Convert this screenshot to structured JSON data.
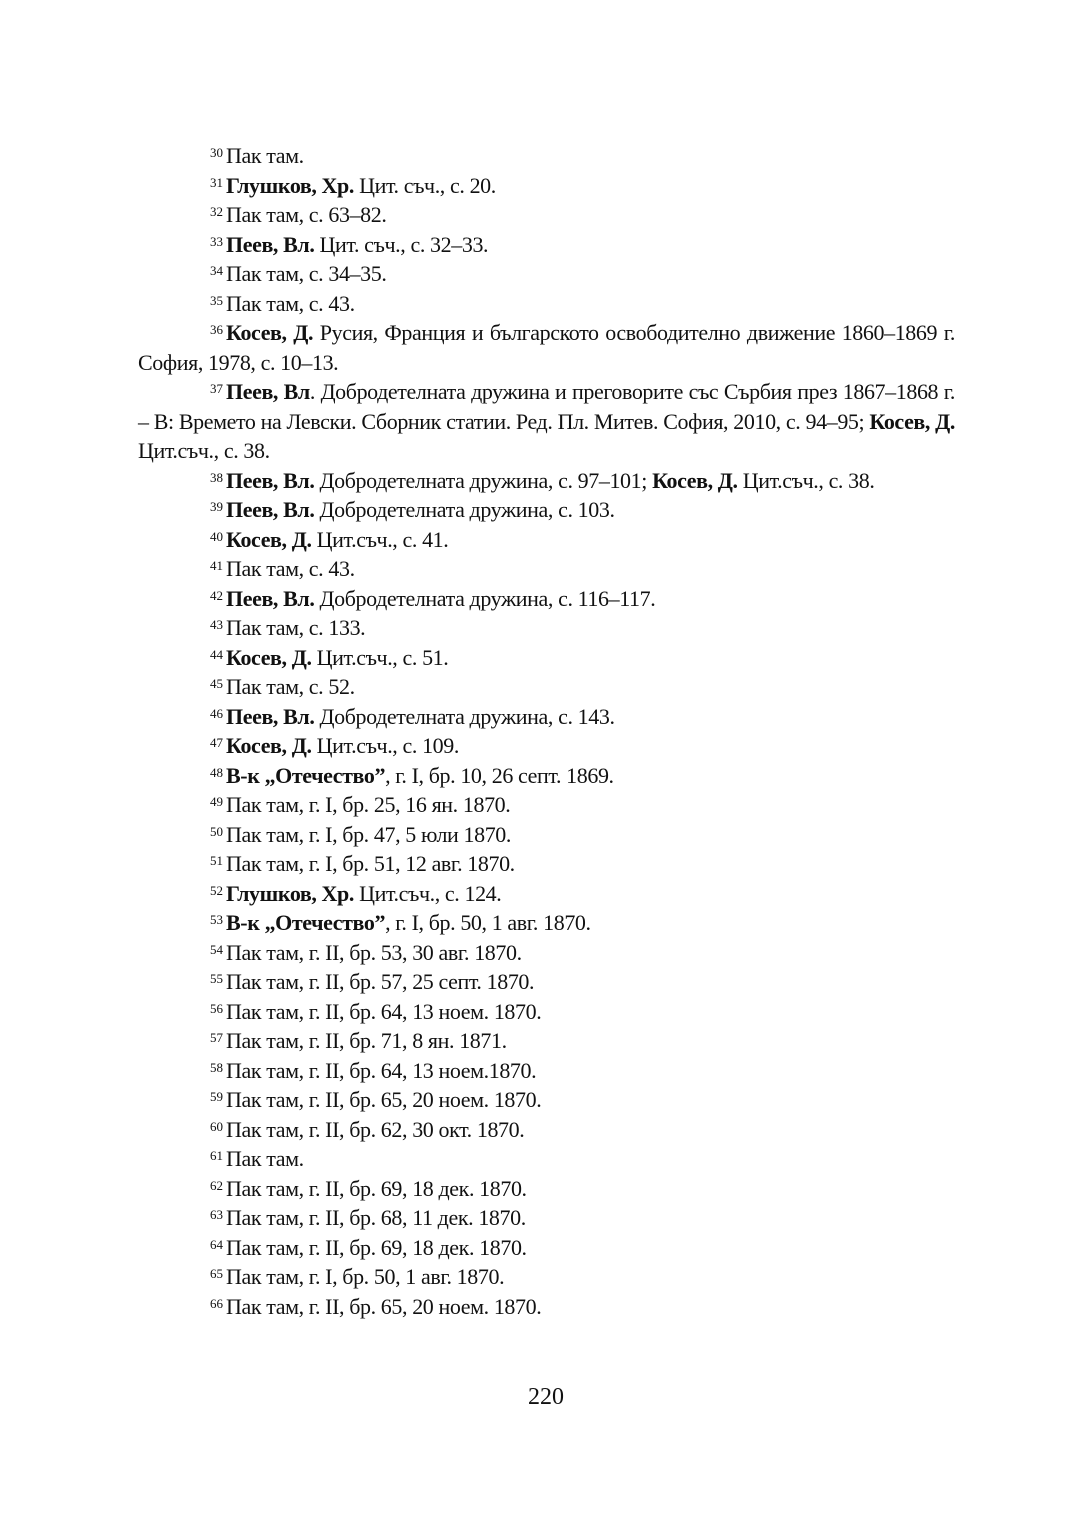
{
  "notes": [
    {
      "num": "30",
      "segments": [
        {
          "t": "Пак там."
        }
      ]
    },
    {
      "num": "31",
      "segments": [
        {
          "b": "Глушков, Хр."
        },
        {
          "t": " Цит. съч., с. 20."
        }
      ]
    },
    {
      "num": "32",
      "segments": [
        {
          "t": "Пак там, с. 63–82."
        }
      ]
    },
    {
      "num": "33",
      "segments": [
        {
          "b": "Пеев, Вл."
        },
        {
          "t": " Цит. съч., с. 32–33."
        }
      ]
    },
    {
      "num": "34",
      "segments": [
        {
          "t": "Пак там, с. 34–35."
        }
      ]
    },
    {
      "num": "35",
      "segments": [
        {
          "t": "Пак там, с. 43."
        }
      ]
    },
    {
      "num": "36",
      "segments": [
        {
          "b": "Косев, Д."
        },
        {
          "t": " Русия, Франция и българското освободително движение 1860–1869 г. София, 1978, с. 10–13."
        }
      ]
    },
    {
      "num": "37",
      "segments": [
        {
          "b": "Пеев, Вл"
        },
        {
          "t": ". Добродетелната дружина и преговорите със Сърбия през 1867–1868 г. – В: Времето на Левски. Сборник статии. Ред. Пл. Митев. София, 2010, с. 94–95; "
        },
        {
          "b": "Косев, Д."
        },
        {
          "t": " Цит.съч., с. 38."
        }
      ]
    },
    {
      "num": "38",
      "segments": [
        {
          "b": "Пеев, Вл."
        },
        {
          "t": " Добродетелната дружина, с. 97–101; "
        },
        {
          "b": "Косев, Д."
        },
        {
          "t": " Цит.съч., с. 38."
        }
      ]
    },
    {
      "num": "39",
      "segments": [
        {
          "b": "Пеев, Вл."
        },
        {
          "t": " Добродетелната дружина, с. 103."
        }
      ]
    },
    {
      "num": "40",
      "segments": [
        {
          "b": "Косев, Д."
        },
        {
          "t": " Цит.съч., с. 41."
        }
      ]
    },
    {
      "num": "41",
      "segments": [
        {
          "t": "Пак там, с. 43."
        }
      ]
    },
    {
      "num": "42",
      "segments": [
        {
          "b": "Пеев, Вл."
        },
        {
          "t": " Добродетелната дружина, с. 116–117."
        }
      ]
    },
    {
      "num": "43",
      "segments": [
        {
          "t": "Пак там, с. 133."
        }
      ]
    },
    {
      "num": "44",
      "segments": [
        {
          "b": "Косев, Д."
        },
        {
          "t": " Цит.съч., с. 51."
        }
      ]
    },
    {
      "num": "45",
      "segments": [
        {
          "t": "Пак там, с. 52."
        }
      ]
    },
    {
      "num": "46",
      "segments": [
        {
          "b": "Пеев, Вл."
        },
        {
          "t": " Добродетелната дружина, с. 143."
        }
      ]
    },
    {
      "num": "47",
      "segments": [
        {
          "b": "Косев, Д."
        },
        {
          "t": " Цит.съч., с. 109."
        }
      ]
    },
    {
      "num": "48",
      "segments": [
        {
          "b": "В-к „Отечество”"
        },
        {
          "t": ", г. I, бр. 10, 26 септ. 1869."
        }
      ]
    },
    {
      "num": "49",
      "segments": [
        {
          "t": "Пак там, г. I, бр. 25, 16 ян. 1870."
        }
      ]
    },
    {
      "num": "50",
      "segments": [
        {
          "t": "Пак там, г. I, бр. 47, 5 юли 1870."
        }
      ]
    },
    {
      "num": "51",
      "segments": [
        {
          "t": "Пак там, г. I, бр. 51, 12 авг. 1870."
        }
      ]
    },
    {
      "num": "52",
      "segments": [
        {
          "b": "Глушков, Хр."
        },
        {
          "t": " Цит.съч., с. 124."
        }
      ]
    },
    {
      "num": "53",
      "segments": [
        {
          "b": "В-к „Отечество”"
        },
        {
          "t": ", г. I, бр. 50, 1 авг. 1870."
        }
      ]
    },
    {
      "num": "54",
      "segments": [
        {
          "t": "Пак там, г. II, бр. 53, 30 авг. 1870."
        }
      ]
    },
    {
      "num": "55",
      "segments": [
        {
          "t": "Пак там, г. II, бр. 57, 25 септ. 1870."
        }
      ]
    },
    {
      "num": "56",
      "segments": [
        {
          "t": "Пак там, г. II, бр. 64, 13 ноем. 1870."
        }
      ]
    },
    {
      "num": "57",
      "segments": [
        {
          "t": "Пак там, г. II, бр. 71, 8 ян. 1871."
        }
      ]
    },
    {
      "num": "58",
      "segments": [
        {
          "t": "Пак там, г. II, бр. 64, 13 ноем.1870."
        }
      ]
    },
    {
      "num": "59",
      "segments": [
        {
          "t": "Пак там, г. II, бр. 65, 20 ноем. 1870."
        }
      ]
    },
    {
      "num": "60",
      "segments": [
        {
          "t": "Пак там, г. II, бр. 62, 30 окт. 1870."
        }
      ]
    },
    {
      "num": "61",
      "segments": [
        {
          "t": "Пак там."
        }
      ]
    },
    {
      "num": "62",
      "segments": [
        {
          "t": "Пак там, г. II, бр. 69, 18 дек. 1870."
        }
      ]
    },
    {
      "num": "63",
      "segments": [
        {
          "t": "Пак там, г. II, бр. 68, 11 дек. 1870."
        }
      ]
    },
    {
      "num": "64",
      "segments": [
        {
          "t": "Пак там, г. II, бр. 69, 18 дек. 1870."
        }
      ]
    },
    {
      "num": "65",
      "segments": [
        {
          "t": "Пак там, г. I, бр. 50, 1 авг. 1870."
        }
      ]
    },
    {
      "num": "66",
      "segments": [
        {
          "t": "Пак там, г. II, бр. 65, 20 ноем. 1870."
        }
      ]
    }
  ],
  "page_number": "220"
}
